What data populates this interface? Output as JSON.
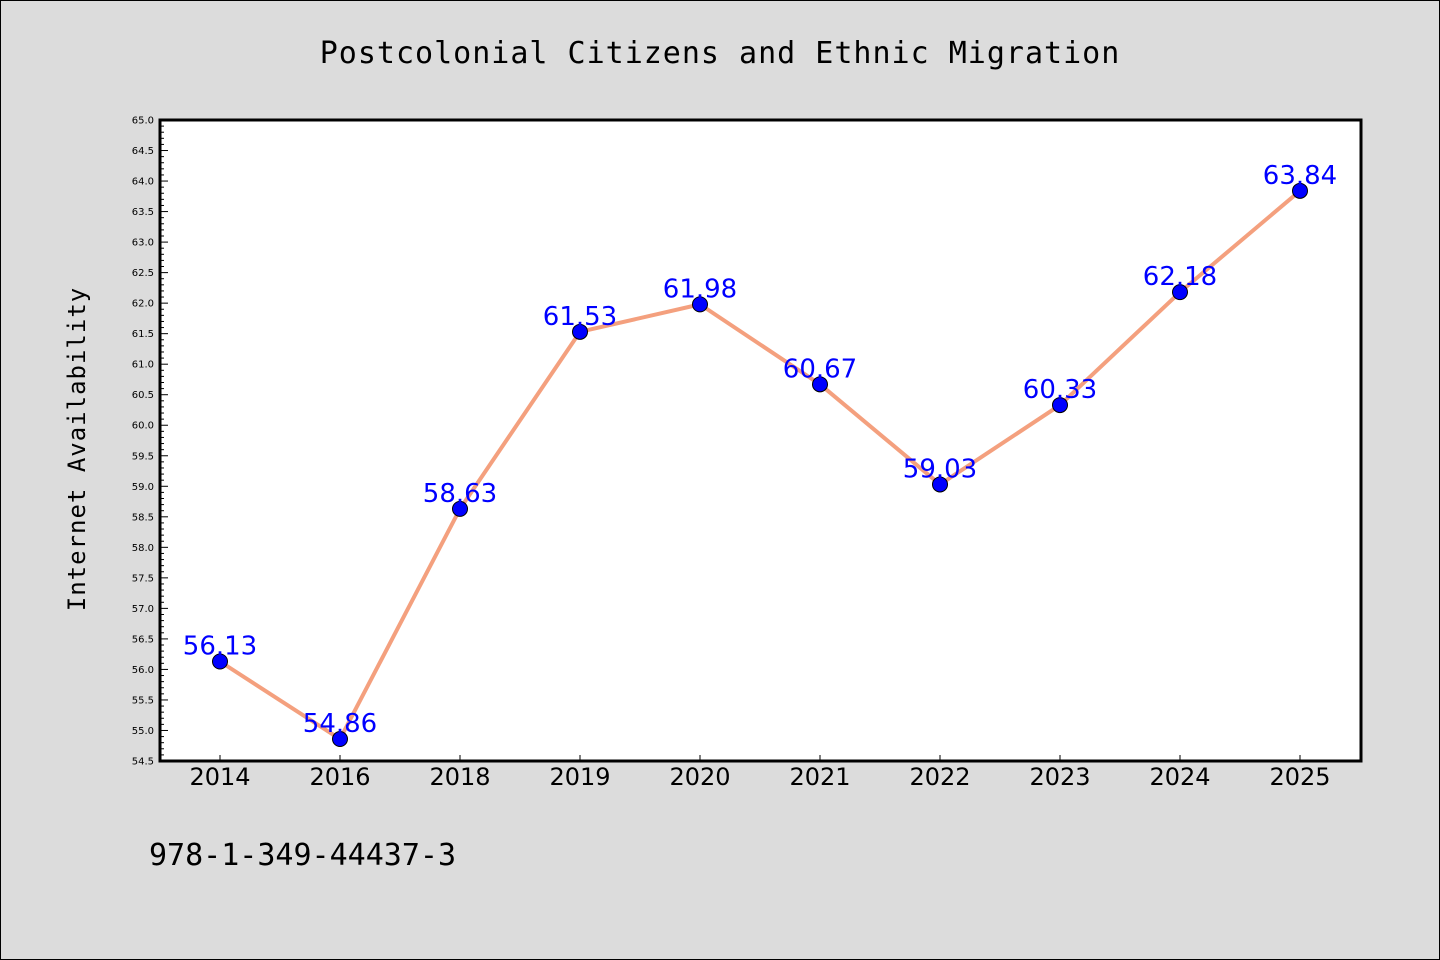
{
  "chart_data": {
    "type": "line",
    "title": "Postcolonial Citizens and Ethnic Migration",
    "xlabel": "",
    "ylabel": "Internet Availability",
    "categories": [
      "2014",
      "2016",
      "2018",
      "2019",
      "2020",
      "2021",
      "2022",
      "2023",
      "2024",
      "2025"
    ],
    "series": [
      {
        "values": [
          56.13,
          54.86,
          58.63,
          61.53,
          61.98,
          60.67,
          59.03,
          60.33,
          62.18,
          63.84
        ],
        "labels": [
          "56.13",
          "54.86",
          "58.63",
          "61.53",
          "61.98",
          "60.67",
          "59.03",
          "60.33",
          "62.18",
          "63.84"
        ],
        "line_color": "#f4a07e",
        "marker_color": "#0000ff"
      }
    ],
    "ylim": [
      54.5,
      65.0
    ],
    "yticks": [
      "54.5",
      "55.0",
      "55.5",
      "56.0",
      "56.5",
      "57.0",
      "57.5",
      "58.0",
      "58.5",
      "59.0",
      "59.5",
      "60.0",
      "60.5",
      "61.0",
      "61.5",
      "62.0",
      "62.5",
      "63.0",
      "63.5",
      "64.0",
      "64.5",
      "65.0"
    ],
    "grid": false,
    "legend": "none"
  },
  "footer": {
    "text": "978-1-349-44437-3"
  },
  "colors": {
    "background": "#dcdcdc",
    "plot_background": "#ffffff",
    "line": "#f4a07e",
    "marker": "#0000ff",
    "label": "#0000ff"
  }
}
